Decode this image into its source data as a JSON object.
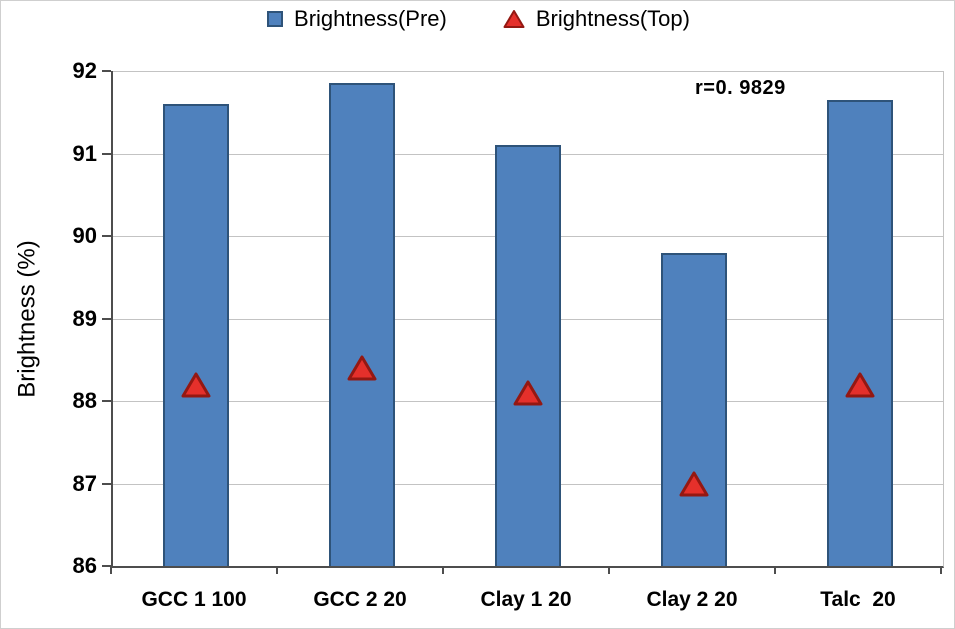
{
  "chart_data": {
    "type": "bar",
    "title": "",
    "categories": [
      "GCC 1 100",
      "GCC 2 20",
      "Clay 1 20",
      "Clay 2 20",
      "Talc  20"
    ],
    "series": [
      {
        "name": "Brightness(Pre)",
        "type": "bar",
        "values": [
          91.6,
          91.85,
          91.1,
          89.8,
          91.65
        ]
      },
      {
        "name": "Brightness(Top)",
        "type": "scatter",
        "marker": "triangle",
        "values": [
          88.2,
          88.4,
          88.1,
          87.0,
          88.2
        ]
      }
    ],
    "xlabel": "",
    "ylabel": "Brightness (%)",
    "ylim": [
      86,
      92
    ],
    "yticks": [
      86,
      87,
      88,
      89,
      90,
      91,
      92
    ],
    "grid": "horizontal",
    "legend_position": "top-center",
    "annotation": "r=0. 9829",
    "colors": {
      "bar_fill": "#4f81bd",
      "bar_stroke": "#2e5379",
      "marker_fill": "#e5302b",
      "marker_stroke": "#941812",
      "grid": "#c3c3c3",
      "axis": "#4d4d4d",
      "text": "#000000"
    }
  }
}
